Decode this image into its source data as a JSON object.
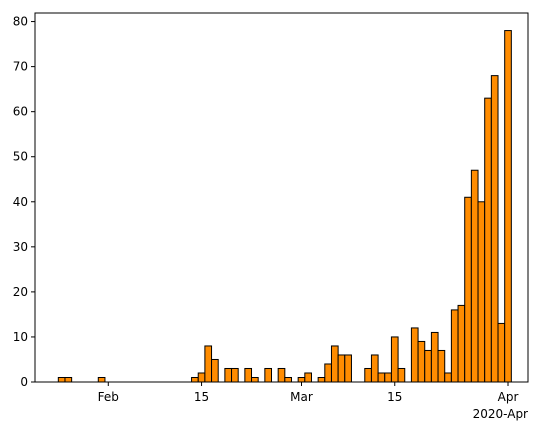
{
  "chart_data": {
    "type": "bar",
    "x": [
      "2020-01-25",
      "2020-01-26",
      "2020-01-31",
      "2020-02-14",
      "2020-02-15",
      "2020-02-16",
      "2020-02-17",
      "2020-02-19",
      "2020-02-20",
      "2020-02-22",
      "2020-02-23",
      "2020-02-25",
      "2020-02-27",
      "2020-02-28",
      "2020-03-01",
      "2020-03-02",
      "2020-03-04",
      "2020-03-05",
      "2020-03-06",
      "2020-03-07",
      "2020-03-08",
      "2020-03-11",
      "2020-03-12",
      "2020-03-13",
      "2020-03-14",
      "2020-03-15",
      "2020-03-16",
      "2020-03-18",
      "2020-03-19",
      "2020-03-20",
      "2020-03-21",
      "2020-03-22",
      "2020-03-23",
      "2020-03-24",
      "2020-03-25",
      "2020-03-26",
      "2020-03-27",
      "2020-03-28",
      "2020-03-29",
      "2020-03-30",
      "2020-03-31",
      "2020-04-01"
    ],
    "values": [
      1,
      1,
      1,
      1,
      2,
      8,
      5,
      3,
      3,
      3,
      1,
      3,
      3,
      1,
      1,
      2,
      1,
      4,
      8,
      6,
      6,
      3,
      6,
      2,
      2,
      10,
      3,
      12,
      9,
      7,
      11,
      7,
      2,
      16,
      17,
      41,
      47,
      40,
      63,
      68,
      13,
      78
    ],
    "color": "#ff8c00",
    "edgecolor": "#000000",
    "xlim": [
      "2020-01-21",
      "2020-04-04"
    ],
    "xticks": [
      {
        "value": "2020-02-01",
        "label": "Feb"
      },
      {
        "value": "2020-02-15",
        "label": "15"
      },
      {
        "value": "2020-03-01",
        "label": "Mar"
      },
      {
        "value": "2020-03-15",
        "label": "15"
      },
      {
        "value": "2020-04-01",
        "label": "Apr"
      }
    ],
    "x_offset_label": "2020-Apr",
    "ylim": [
      0,
      81.9
    ],
    "yticks": [
      0,
      10,
      20,
      30,
      40,
      50,
      60,
      70,
      80
    ]
  }
}
